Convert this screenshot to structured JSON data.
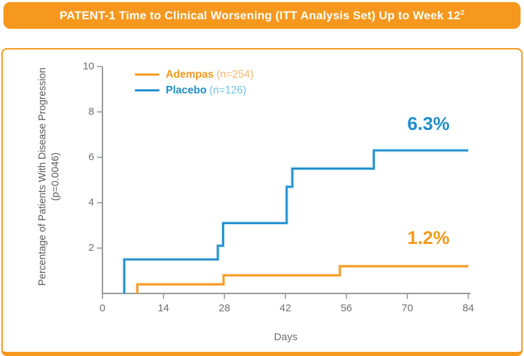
{
  "header": {
    "title": "PATENT-1 Time to Clinical Worsening (ITT Analysis Set) Up to Week 12",
    "title_superscript": "2"
  },
  "colors": {
    "brand_orange": "#F6981E",
    "brand_blue": "#1E8ECD",
    "legend_n_orange": "#F8B567",
    "legend_n_blue": "#74C2E6",
    "axis_gray": "#939598",
    "tick_text_gray": "#6D6E71",
    "ylabel_gray": "#58595B",
    "title_text_white": "#FFFFFF"
  },
  "chart_data": {
    "type": "line",
    "subtype": "step-cumulative-incidence",
    "xlabel": "Days",
    "ylabel_line1": "Percentage of Patients With Disease Progression",
    "ylabel_line2": "(p=0.0046)",
    "xlim": [
      0,
      84
    ],
    "ylim": [
      0,
      10
    ],
    "x_ticks": [
      0,
      14,
      28,
      42,
      56,
      70,
      84
    ],
    "y_ticks": [
      2,
      4,
      6,
      8,
      10
    ],
    "grid": "off",
    "legend_position": "top-left",
    "series": [
      {
        "name": "Adempas",
        "n_label": "(n=254)",
        "color": "#F6981E",
        "halo_color": "#FBD8A6",
        "final_label": "1.2%",
        "final_value": 1.2,
        "points": [
          [
            8,
            0
          ],
          [
            8,
            0.4
          ],
          [
            27.8,
            0.4
          ],
          [
            27.8,
            0.8
          ],
          [
            54.5,
            0.8
          ],
          [
            54.5,
            1.2
          ],
          [
            84,
            1.2
          ]
        ]
      },
      {
        "name": "Placebo",
        "n_label": "(n=126)",
        "color": "#1E8ECD",
        "halo_color": "#AFDBF2",
        "final_label": "6.3%",
        "final_value": 6.3,
        "points": [
          [
            5,
            0
          ],
          [
            5,
            1.5
          ],
          [
            26.5,
            1.5
          ],
          [
            26.5,
            2.1
          ],
          [
            27.7,
            2.1
          ],
          [
            27.7,
            3.1
          ],
          [
            42.3,
            3.1
          ],
          [
            42.3,
            4.7
          ],
          [
            43.6,
            4.7
          ],
          [
            43.6,
            5.5
          ],
          [
            62.3,
            5.5
          ],
          [
            62.3,
            6.3
          ],
          [
            84,
            6.3
          ]
        ]
      }
    ]
  }
}
